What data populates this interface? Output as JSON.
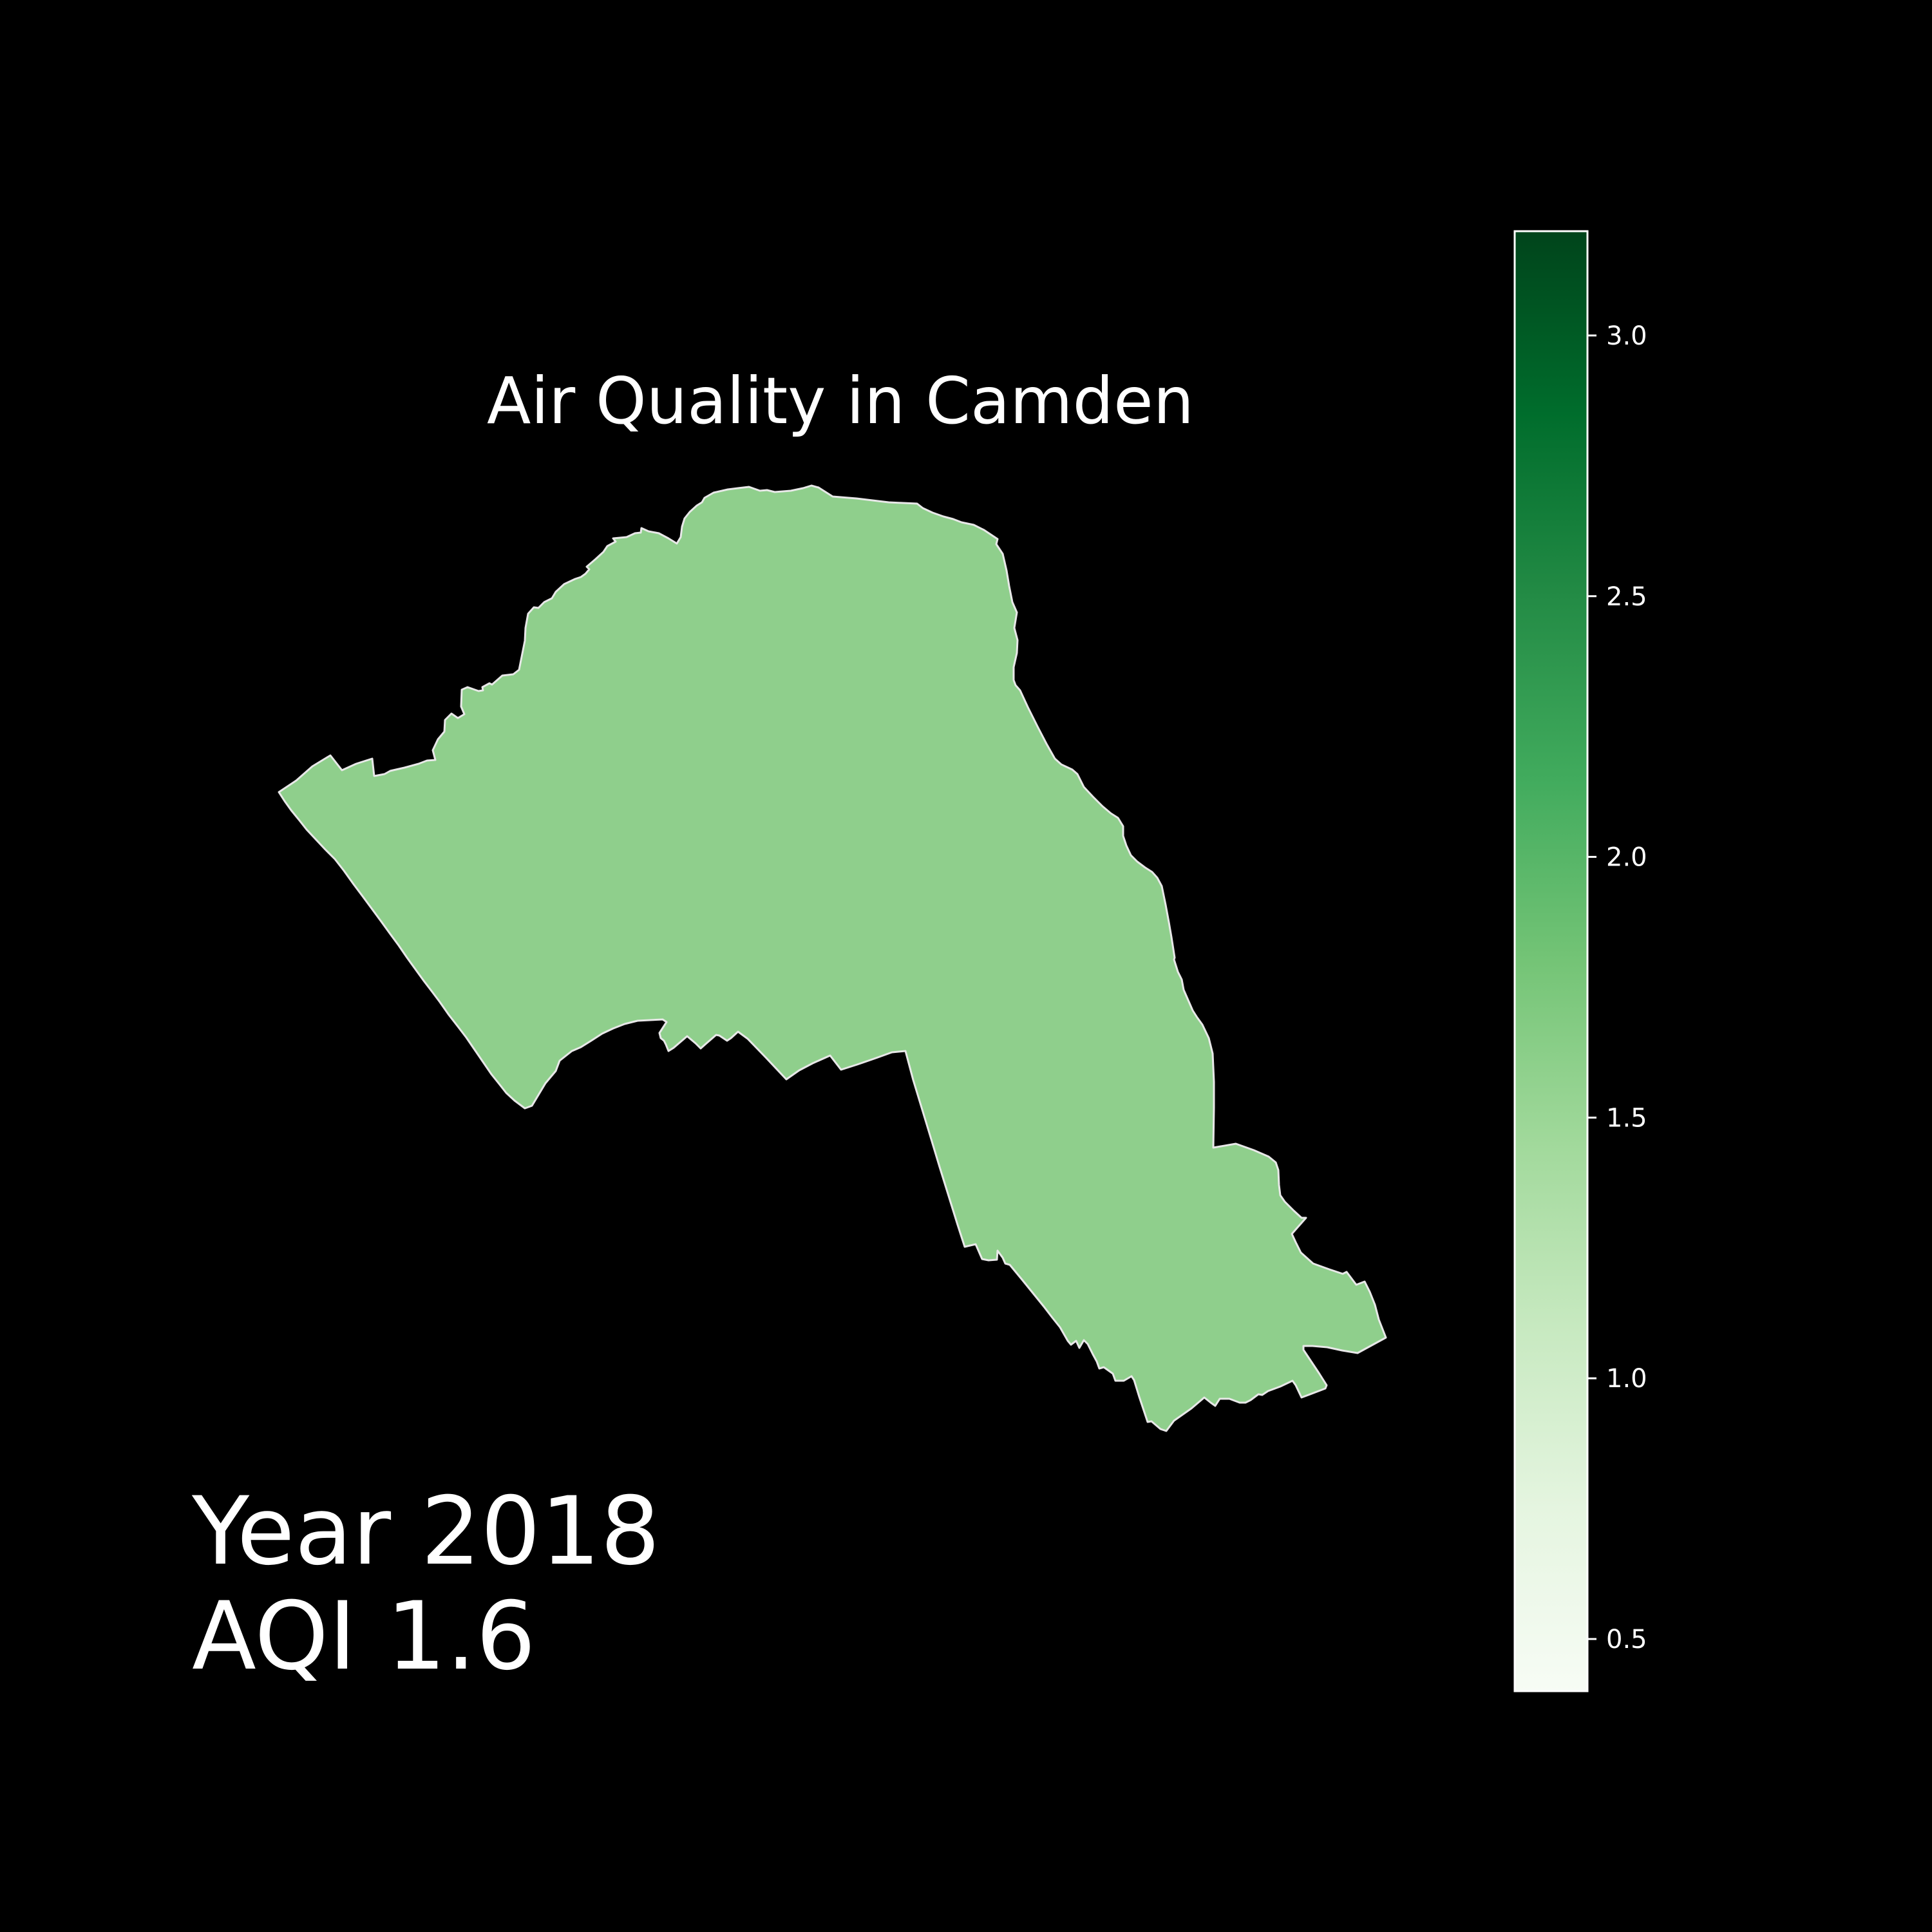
{
  "title": "Air Quality in Camden",
  "year_line": "Year 2018",
  "aqi_line": "AQI 1.6",
  "region": {
    "name": "Camden",
    "aqi_value": 1.6,
    "fill_color": "#8fcf8c",
    "outline_color": "#e8e8e8"
  },
  "colorbar": {
    "colormap": "Greens",
    "range": [
      0.4,
      3.2
    ],
    "ticks": [
      {
        "value": 0.5,
        "label": "0.5"
      },
      {
        "value": 1.0,
        "label": "1.0"
      },
      {
        "value": 1.5,
        "label": "1.5"
      },
      {
        "value": 2.0,
        "label": "2.0"
      },
      {
        "value": 2.5,
        "label": "2.5"
      },
      {
        "value": 3.0,
        "label": "3.0"
      }
    ],
    "stops": [
      "#f7fcf5",
      "#e5f5e0",
      "#c7e9c0",
      "#a1d99b",
      "#74c476",
      "#41ab5d",
      "#238b45",
      "#006d2c",
      "#00441b"
    ],
    "frame_color": "#ffffff"
  },
  "background_color": "#000000"
}
